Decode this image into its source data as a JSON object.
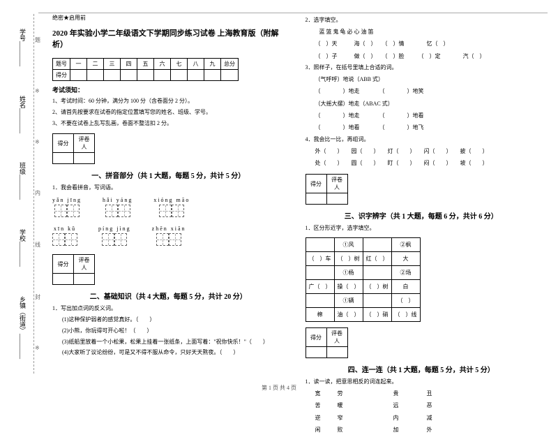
{
  "classification": "绝密★启用前",
  "title": "2020 年实验小学二年级语文下学期同步练习试卷 上海教育版（附解析）",
  "scoreHeader": [
    "题号",
    "一",
    "二",
    "三",
    "四",
    "五",
    "六",
    "七",
    "八",
    "九",
    "总分"
  ],
  "rowLabel": "得分",
  "notice": "考试须知：",
  "notices": [
    "1、考试时间：60 分钟，满分为 100 分（含卷面分 2 分）。",
    "2、请首先按要求在试卷的指定位置填写您的姓名、班级、学号。",
    "3、不要在试卷上乱写乱画，卷面不整洁扣 2 分。"
  ],
  "scoreBox": {
    "col1": "得分",
    "col2": "评卷人"
  },
  "sections": {
    "s1": {
      "title": "一、拼音部分（共 1 大题，每题 5 分，共计 5 分）",
      "q1": "1．我会看拼音，写词语。"
    },
    "s2": {
      "title": "二、基础知识（共 4 大题，每题 5 分，共计 20 分）",
      "q1": "1．写出加点词的反义词。"
    },
    "s3": {
      "title": "三、识字辨字（共 1 大题，每题 6 分，共计 6 分）",
      "q1": "1．区分形近字，选字填空。"
    },
    "s4": {
      "title": "四、连一连（共 1 大题，每题 5 分，共计 5 分）",
      "q1": "1．读一读，把意思相反的词连起来。"
    }
  },
  "pinyin": {
    "r1": [
      {
        "py": "yǎn  jīng",
        "n": 2
      },
      {
        "py": "hǎi  yáng",
        "n": 2
      },
      {
        "py": "xióng  māo",
        "n": 2
      }
    ],
    "r2": [
      {
        "py": "xīn  kǔ",
        "n": 2
      },
      {
        "py": "píng  jìng",
        "n": 2
      },
      {
        "py": "zhēn  xiān",
        "n": 2
      }
    ]
  },
  "q2_1": {
    "a": "(1)这种保护弱者的感觉真好。（　　）",
    "b": "(2)小熊，你玩得可开心啦！（　　）",
    "c": "(3)纸船里放着一个小松果，松果上挂着一张纸条，上面写着：\"祝你快乐！\"（　　）",
    "d": "(4)大家听了议论纷纷，可是又不得不服从命令，只好天天熬夜。（　　）"
  },
  "right": {
    "q2": "2．选字填空。",
    "q2_chars": "蓝   篮       鬼   龟       必   心       油   笛",
    "q2_lines": [
      "（　）天　　　海（　）　　（　）情　　　　忆（　）",
      "（　）子　　　做（　）　　（　）脸　　　（　）定　　　　汽（　）"
    ],
    "q3": "3．照样子，在括号里填上合适的词。",
    "q3_lines": [
      "（气呼呼）地说（ABB 式）",
      "（　　　　）地走　　　　（　　　　）地笑",
      "（大摇大摆）地走（ABAC 式）",
      "（　　　　）地走　　　　（　　　　）地看",
      "（　　　　）地看　　　　（　　　　）地飞"
    ],
    "q4": "4．我会比一比，再组词。",
    "q4_lines": [
      "外（　　）　　园（　　）　　灯（　　）　　闪（　　）　　披（　　）",
      "处（　　）　　圆（　　）　　盯（　　）　　闷（　　）　　坡（　　）"
    ],
    "charTable": {
      "r1": [
        "",
        "①风",
        "",
        "②枫"
      ],
      "r2": [
        "（　）车",
        "（　）树",
        "红（　）",
        "大"
      ],
      "r3": [
        "",
        "①杨",
        "",
        "②场"
      ],
      "r4": [
        "广（　）",
        "操（　）",
        "（　）树",
        "白"
      ],
      "r5": [
        "",
        "①辆",
        "",
        "（　）"
      ],
      "r6": [
        "棉",
        "油（　）",
        "（　）硝",
        "（　）线"
      ]
    },
    "connect": [
      "宽　　　劳　　　　　　　　　贵　　　　　丑",
      "苦　　　暖　　　　　　　　　远　　　　　恶",
      "逆　　　窄　　　　　　　　　内　　　　　减",
      "闲　　　败　　　　　　　　　加　　　　　外"
    ]
  },
  "vlabels": [
    "学号",
    "姓名",
    "班级",
    "学校",
    "乡镇（街道）"
  ],
  "crosses": [
    "题",
    "※",
    "※",
    "内",
    "线",
    "封",
    "※"
  ],
  "footer": "第 1 页  共 4 页"
}
